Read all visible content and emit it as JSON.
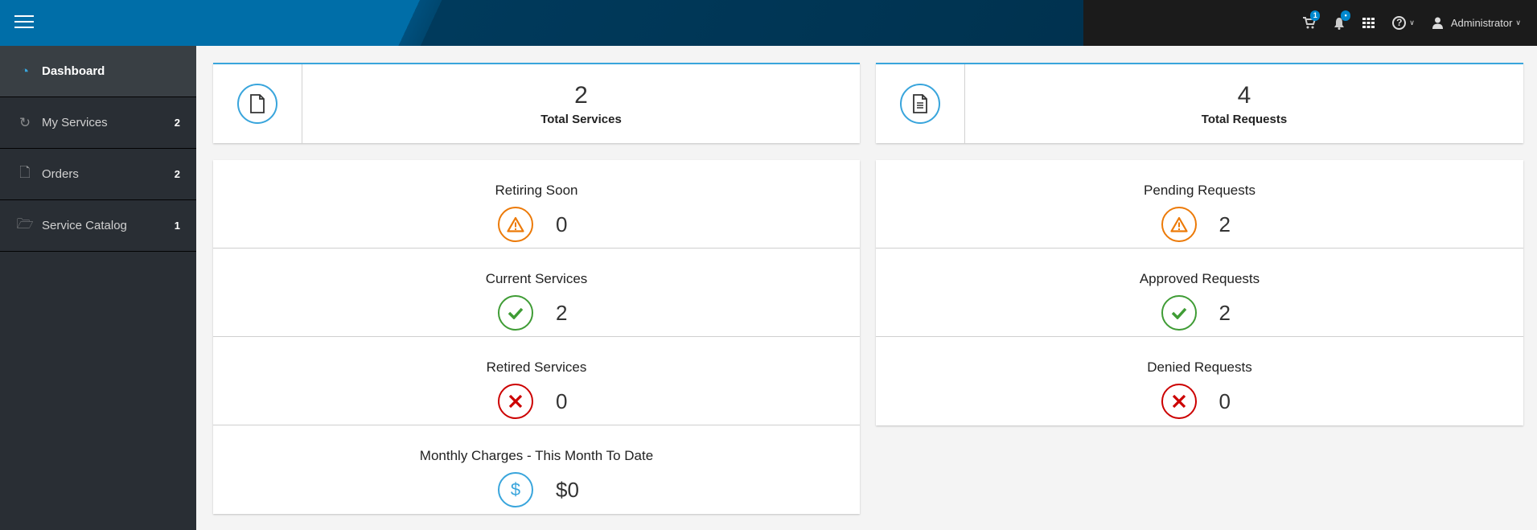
{
  "header": {
    "cart_badge": "1",
    "notifications_badge": "•",
    "user": "Administrator",
    "menu_icon": "hamburger-icon"
  },
  "sidebar": {
    "items": [
      {
        "label": "Dashboard",
        "count": "",
        "icon": "dashboard-icon",
        "active": true
      },
      {
        "label": "My Services",
        "count": "2",
        "icon": "services-icon"
      },
      {
        "label": "Orders",
        "count": "2",
        "icon": "file-icon"
      },
      {
        "label": "Service Catalog",
        "count": "1",
        "icon": "folder-open-icon"
      }
    ]
  },
  "summary": {
    "services": {
      "value": "2",
      "label": "Total Services"
    },
    "requests": {
      "value": "4",
      "label": "Total Requests"
    }
  },
  "services_stats": [
    {
      "label": "Retiring Soon",
      "value": "0",
      "status": "warning"
    },
    {
      "label": "Current Services",
      "value": "2",
      "status": "ok"
    },
    {
      "label": "Retired Services",
      "value": "0",
      "status": "error"
    },
    {
      "label": "Monthly Charges - This Month To Date",
      "value": "$0",
      "status": "money"
    }
  ],
  "requests_stats": [
    {
      "label": "Pending Requests",
      "value": "2",
      "status": "warning"
    },
    {
      "label": "Approved Requests",
      "value": "2",
      "status": "ok"
    },
    {
      "label": "Denied Requests",
      "value": "0",
      "status": "error"
    }
  ],
  "colors": {
    "accent": "#39a5dc",
    "warning": "#ec7a08",
    "ok": "#3f9c35",
    "error": "#cc0000"
  }
}
